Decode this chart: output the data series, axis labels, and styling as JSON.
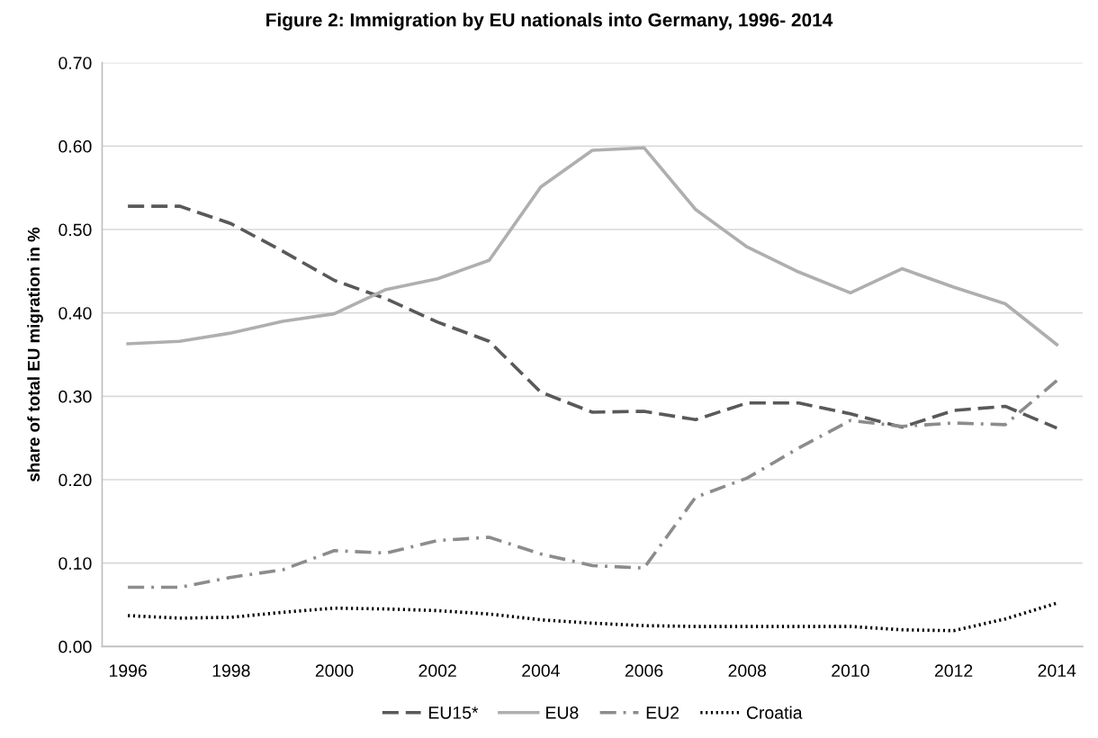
{
  "chart_data": {
    "type": "line",
    "title": "Figure 2: Immigration by EU nationals into Germany, 1996- 2014",
    "ylabel": "share of total EU migration in %",
    "x": [
      1996,
      1997,
      1998,
      1999,
      2000,
      2001,
      2002,
      2003,
      2004,
      2005,
      2006,
      2007,
      2008,
      2009,
      2010,
      2011,
      2012,
      2013,
      2014
    ],
    "xlim": [
      1995.5,
      2014.5
    ],
    "xticks": [
      1996,
      1998,
      2000,
      2002,
      2004,
      2006,
      2008,
      2010,
      2012,
      2014
    ],
    "ylim": [
      0,
      0.7
    ],
    "yticks": [
      {
        "value": 0,
        "label": "0.00"
      },
      {
        "value": 0.1,
        "label": "0.10"
      },
      {
        "value": 0.2,
        "label": "0.20"
      },
      {
        "value": 0.3,
        "label": "0.30"
      },
      {
        "value": 0.4,
        "label": "0.40"
      },
      {
        "value": 0.5,
        "label": "0.50"
      },
      {
        "value": 0.6,
        "label": "0.60"
      },
      {
        "value": 0.7,
        "label": "0.70"
      }
    ],
    "grid": "y",
    "legend": "bottom",
    "series": [
      {
        "name": "EU15*",
        "color": "#595959",
        "line_style": "dashed",
        "values": [
          0.528,
          0.528,
          0.507,
          0.474,
          0.439,
          0.417,
          0.389,
          0.366,
          0.305,
          0.281,
          0.282,
          0.272,
          0.292,
          0.292,
          0.279,
          0.263,
          0.283,
          0.288,
          0.262
        ]
      },
      {
        "name": "EU8",
        "color": "#afafaf",
        "line_style": "solid",
        "values": [
          0.363,
          0.366,
          0.376,
          0.39,
          0.399,
          0.428,
          0.441,
          0.463,
          0.551,
          0.595,
          0.598,
          0.524,
          0.479,
          0.449,
          0.424,
          0.453,
          0.431,
          0.411,
          0.362
        ]
      },
      {
        "name": "EU2",
        "color": "#8c8c8c",
        "line_style": "dashdot",
        "values": [
          0.071,
          0.071,
          0.083,
          0.092,
          0.115,
          0.112,
          0.127,
          0.131,
          0.111,
          0.097,
          0.094,
          0.179,
          0.202,
          0.238,
          0.271,
          0.264,
          0.268,
          0.266,
          0.319
        ]
      },
      {
        "name": "Croatia",
        "color": "#000000",
        "line_style": "dotted",
        "values": [
          0.037,
          0.034,
          0.035,
          0.041,
          0.046,
          0.045,
          0.043,
          0.039,
          0.032,
          0.028,
          0.025,
          0.024,
          0.024,
          0.024,
          0.024,
          0.02,
          0.019,
          0.033,
          0.052
        ]
      }
    ]
  }
}
